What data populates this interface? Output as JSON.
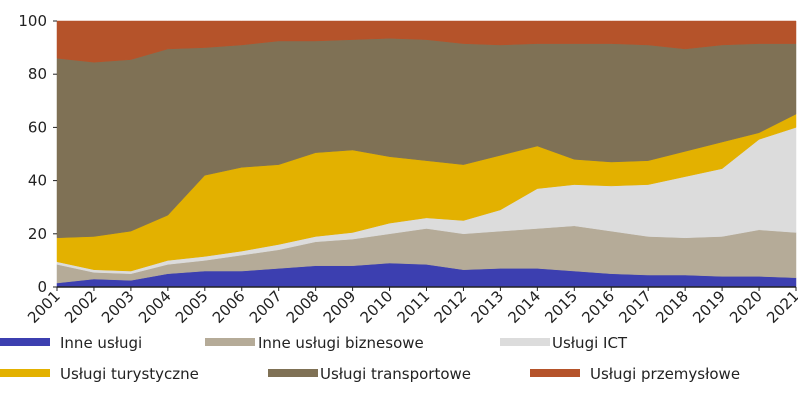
{
  "chart_data": {
    "type": "stacked_area",
    "categories": [
      "2001",
      "2002",
      "2003",
      "2004",
      "2005",
      "2006",
      "2007",
      "2008",
      "2009",
      "2010",
      "2011",
      "2012",
      "2013",
      "2014",
      "2015",
      "2016",
      "2017",
      "2018",
      "2019",
      "2020",
      "2021"
    ],
    "series": [
      {
        "name": "Inne usługi",
        "color": "#3c3fb0",
        "values": [
          1.5,
          3,
          2.5,
          5,
          6,
          6,
          7,
          8,
          8,
          9,
          8.5,
          6.5,
          7,
          7,
          6,
          5,
          4.5,
          4.5,
          4,
          4,
          3.5
        ]
      },
      {
        "name": "Inne usługi biznesowe",
        "color": "#b5ab98",
        "values": [
          7,
          2.5,
          2.5,
          3.5,
          4,
          6,
          7,
          9,
          10,
          11,
          13.5,
          13.5,
          14,
          15,
          17,
          16,
          14.5,
          14,
          15,
          17.5,
          17
        ]
      },
      {
        "name": "Usługi ICT",
        "color": "#dcdcdc",
        "values": [
          1,
          1,
          1,
          1.5,
          1.5,
          1.5,
          2,
          2,
          2.5,
          4,
          4,
          5,
          8,
          15,
          15.5,
          17,
          19.5,
          23,
          25.5,
          34,
          39.5
        ]
      },
      {
        "name": "Usługi turystyczne",
        "color": "#e3b100",
        "values": [
          9,
          12.5,
          15,
          17,
          30.5,
          31.5,
          30,
          31.5,
          31,
          25,
          21.5,
          21,
          20.5,
          16,
          9.5,
          9,
          9,
          9.5,
          10,
          2.5,
          5
        ]
      },
      {
        "name": "Usługi transportowe",
        "color": "#7f7155",
        "values": [
          67.5,
          65.5,
          64.5,
          62.5,
          48,
          46,
          46.5,
          42,
          41.5,
          44.5,
          45.5,
          45.5,
          41.5,
          38.5,
          43.5,
          44.5,
          43.5,
          38.5,
          36.5,
          33.5,
          26.5
        ]
      },
      {
        "name": "Usługi przemysłowe",
        "color": "#b5532a",
        "values": [
          14,
          15.5,
          14.5,
          10.5,
          10,
          9,
          7.5,
          7.5,
          7,
          6.5,
          7,
          8.5,
          9,
          8.5,
          8.5,
          8.5,
          9,
          10.5,
          9,
          8.5,
          8.5
        ]
      }
    ],
    "ylim": [
      0,
      100
    ],
    "yticks": [
      0,
      20,
      40,
      60,
      80,
      100
    ],
    "stacked": true
  }
}
